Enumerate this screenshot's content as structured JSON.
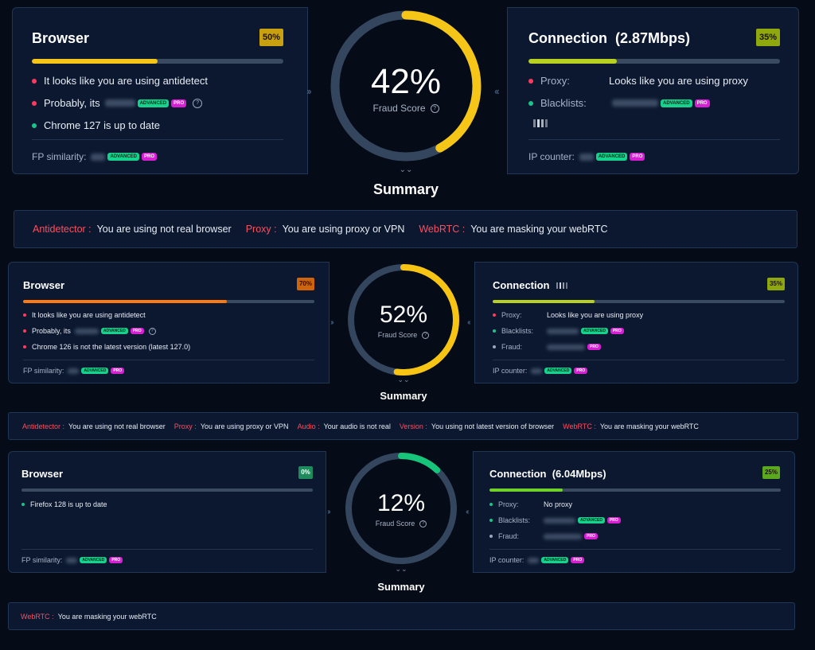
{
  "sections": [
    {
      "browser": {
        "title": "Browser",
        "badge": "50%",
        "badge_color": "#c9a010",
        "bar_fill_pct": 50,
        "bar_color": "#f5c518",
        "lines": [
          {
            "dot": "red",
            "text": "It looks like you are using antidetect"
          },
          {
            "dot": "red",
            "text": "Probably, its"
          },
          {
            "dot": "green",
            "text": "Chrome 127 is up to date"
          }
        ],
        "fp_label": "FP similarity:",
        "tag_advanced": "ADVANCED",
        "tag_pro": "PRO"
      },
      "gauge": {
        "value": "42%",
        "fill_pct": 42,
        "color": "#f5c518",
        "label": "Fraud Score",
        "info": "?"
      },
      "summary_title": "Summary",
      "connection": {
        "title": "Connection  (2.87Mbps)",
        "badge": "35%",
        "badge_color": "#8fa80e",
        "bar_fill_pct": 35,
        "bar_color": "#b8d120",
        "proxy_label": "Proxy:",
        "proxy_value": "Looks like you are using proxy",
        "blacklists_label": "Blacklists:",
        "ip_counter_label": "IP counter:",
        "tag_advanced": "ADVANCED",
        "tag_pro": "PRO"
      },
      "summary_items": [
        {
          "key": "Antidetector :",
          "value": "You are using not real browser"
        },
        {
          "key": "Proxy :",
          "value": "You are using proxy or VPN"
        },
        {
          "key": "WebRTC :",
          "value": "You are masking your webRTC"
        }
      ]
    },
    {
      "browser": {
        "title": "Browser",
        "badge": "70%",
        "badge_color": "#d0640a",
        "bar_fill_pct": 70,
        "bar_color": "#ff7a10",
        "lines": [
          {
            "dot": "red",
            "text": "It looks like you are using antidetect"
          },
          {
            "dot": "red",
            "text": "Probably, its"
          },
          {
            "dot": "red",
            "text": "Chrome 126 is not the latest version (latest 127.0)"
          }
        ],
        "fp_label": "FP similarity:",
        "tag_advanced": "ADVANCED",
        "tag_pro": "PRO"
      },
      "gauge": {
        "value": "52%",
        "fill_pct": 52,
        "color": "#f8c414",
        "label": "Fraud Score",
        "info": "?"
      },
      "summary_title": "Summary",
      "connection": {
        "title": "Connection",
        "badge": "35%",
        "badge_color": "#8fa80e",
        "bar_fill_pct": 35,
        "bar_color": "#b8d120",
        "proxy_label": "Proxy:",
        "proxy_value": "Looks like you are using proxy",
        "blacklists_label": "Blacklists:",
        "fraud_label": "Fraud:",
        "ip_counter_label": "IP counter:",
        "tag_advanced": "ADVANCED",
        "tag_pro": "PRO"
      },
      "summary_items": [
        {
          "key": "Antidetector :",
          "value": "You are using not real browser"
        },
        {
          "key": "Proxy :",
          "value": "You are using proxy or VPN"
        },
        {
          "key": "Audio :",
          "value": "Your audio is not real"
        },
        {
          "key": "Version :",
          "value": "You using not latest version of browser"
        },
        {
          "key": "WebRTC :",
          "value": "You are masking your webRTC"
        }
      ]
    },
    {
      "browser": {
        "title": "Browser",
        "badge": "0%",
        "badge_color": "#1f8a5c",
        "bar_fill_pct": 0,
        "bar_color": "#19c48a",
        "lines": [
          {
            "dot": "green",
            "text": "Firefox 128 is up to date"
          }
        ],
        "fp_label": "FP similarity:",
        "tag_advanced": "ADVANCED",
        "tag_pro": "PRO"
      },
      "gauge": {
        "value": "12%",
        "fill_pct": 12,
        "color": "#16c47a",
        "label": "Fraud Score",
        "info": "?"
      },
      "summary_title": "Summary",
      "connection": {
        "title": "Connection  (6.04Mbps)",
        "badge": "25%",
        "badge_color": "#5aa81e",
        "bar_fill_pct": 25,
        "bar_color": "#6fd12a",
        "proxy_label": "Proxy:",
        "proxy_value": "No proxy",
        "blacklists_label": "Blacklists:",
        "fraud_label": "Fraud:",
        "ip_counter_label": "IP counter:",
        "tag_advanced": "ADVANCED",
        "tag_pro": "PRO"
      },
      "summary_items": [
        {
          "key": "WebRTC :",
          "value": "You are masking your webRTC"
        }
      ]
    }
  ]
}
